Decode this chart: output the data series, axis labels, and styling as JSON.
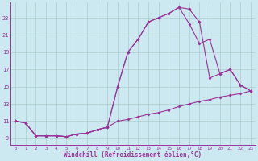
{
  "bg_color": "#cce8f0",
  "line_color": "#993399",
  "grid_color": "#aacccc",
  "xlabel": "Windchill (Refroidissement éolien,°C)",
  "xlabel_fontsize": 5.5,
  "ytick_labels": [
    "9",
    "11",
    "13",
    "15",
    "17",
    "19",
    "21",
    "23"
  ],
  "ytick_values": [
    9,
    11,
    13,
    15,
    17,
    19,
    21,
    23
  ],
  "xlim": [
    -0.5,
    23.5
  ],
  "ylim": [
    8.2,
    24.8
  ],
  "series1": {
    "x": [
      0,
      1,
      2,
      3,
      4,
      5,
      6,
      7,
      8,
      9,
      10,
      11,
      12,
      13,
      14,
      15,
      16,
      17,
      18,
      19,
      20,
      21,
      22,
      23
    ],
    "y": [
      11.0,
      10.8,
      9.3,
      9.3,
      9.3,
      9.2,
      9.5,
      9.6,
      10.0,
      10.3,
      11.0,
      11.2,
      11.5,
      11.8,
      12.0,
      12.3,
      12.7,
      13.0,
      13.3,
      13.5,
      13.8,
      14.0,
      14.2,
      14.5
    ]
  },
  "series2": {
    "x": [
      0,
      1,
      2,
      3,
      4,
      5,
      6,
      7,
      8,
      9,
      10,
      11,
      12,
      13,
      14,
      15,
      16,
      17,
      18,
      19,
      20,
      21,
      22,
      23
    ],
    "y": [
      11.0,
      10.8,
      9.3,
      9.3,
      9.3,
      9.2,
      9.5,
      9.6,
      10.0,
      10.3,
      15.0,
      19.0,
      20.5,
      22.5,
      23.0,
      23.5,
      24.2,
      22.3,
      20.0,
      20.5,
      16.5,
      17.0,
      15.2,
      14.5
    ]
  },
  "series3": {
    "x": [
      0,
      1,
      2,
      3,
      4,
      5,
      6,
      7,
      8,
      9,
      10,
      11,
      12,
      13,
      14,
      15,
      16,
      17,
      18,
      19,
      20,
      21,
      22,
      23
    ],
    "y": [
      11.0,
      10.8,
      9.3,
      9.3,
      9.3,
      9.2,
      9.5,
      9.6,
      10.0,
      10.3,
      15.0,
      19.0,
      20.5,
      22.5,
      23.0,
      23.5,
      24.2,
      24.0,
      22.5,
      16.0,
      16.5,
      17.0,
      15.2,
      14.5
    ]
  }
}
